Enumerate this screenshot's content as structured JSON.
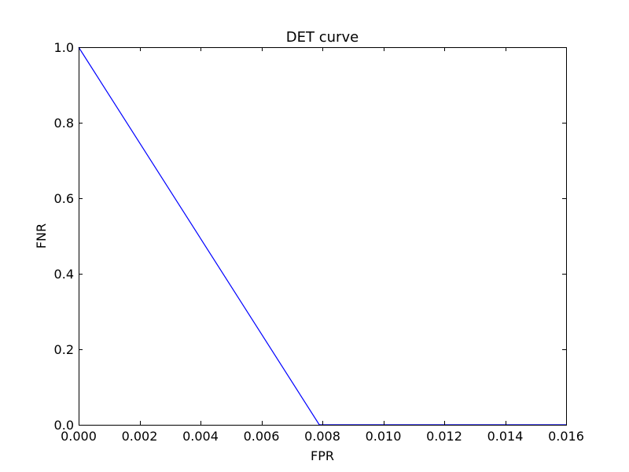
{
  "chart_data": {
    "type": "line",
    "title": "DET curve",
    "xlabel": "FPR",
    "ylabel": "FNR",
    "xlim": [
      0.0,
      0.016
    ],
    "ylim": [
      0.0,
      1.0
    ],
    "xticks": [
      "0.000",
      "0.002",
      "0.004",
      "0.006",
      "0.008",
      "0.010",
      "0.012",
      "0.014",
      "0.016"
    ],
    "yticks": [
      "0.0",
      "0.2",
      "0.4",
      "0.6",
      "0.8",
      "1.0"
    ],
    "grid": false,
    "series": [
      {
        "color": "#0000ff",
        "x": [
          0.0,
          0.0079,
          0.016
        ],
        "y": [
          1.0,
          0.0,
          0.0
        ]
      }
    ]
  }
}
